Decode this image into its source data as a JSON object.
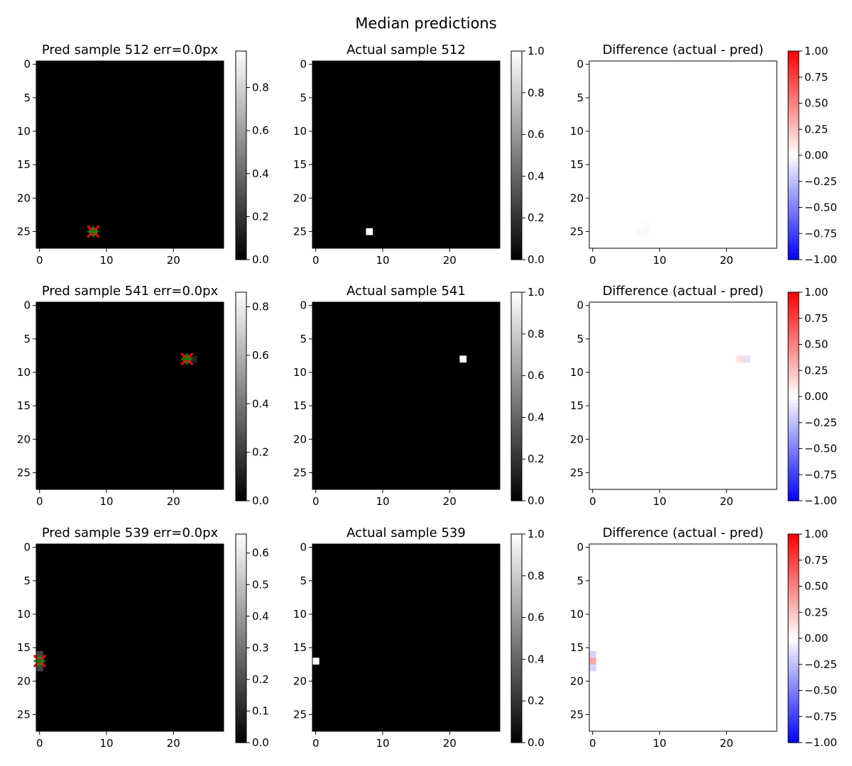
{
  "figure": {
    "suptitle": "Median predictions"
  },
  "chart_data": [
    {
      "type": "heatmap",
      "id": "pred-512",
      "title": "Pred sample 512  err=0.0px",
      "colormap": "gray",
      "shape": [
        28,
        28
      ],
      "xticks": [
        0,
        10,
        20
      ],
      "yticks": [
        0,
        5,
        10,
        15,
        20,
        25
      ],
      "colorbar": {
        "range": [
          0,
          0.97
        ],
        "ticks": [
          0.0,
          0.2,
          0.4,
          0.6,
          0.8
        ],
        "tick_labels": [
          "0.0",
          "0.2",
          "0.4",
          "0.6",
          "0.8"
        ]
      },
      "cells": [
        {
          "row": 25,
          "col": 7,
          "value": 0.02
        },
        {
          "row": 25,
          "col": 8,
          "value": 0.97
        }
      ],
      "markers": [
        {
          "kind": "x",
          "color": "#ff0000",
          "x": 8,
          "y": 25
        },
        {
          "kind": "+",
          "color": "#008000",
          "x": 8,
          "y": 25
        }
      ]
    },
    {
      "type": "heatmap",
      "id": "actual-512",
      "title": "Actual sample 512",
      "colormap": "gray",
      "shape": [
        28,
        28
      ],
      "xticks": [
        0,
        10,
        20
      ],
      "yticks": [
        0,
        5,
        10,
        15,
        20,
        25
      ],
      "colorbar": {
        "range": [
          0,
          1
        ],
        "ticks": [
          0.0,
          0.2,
          0.4,
          0.6,
          0.8,
          1.0
        ],
        "tick_labels": [
          "0.0",
          "0.2",
          "0.4",
          "0.6",
          "0.8",
          "1.0"
        ]
      },
      "cells": [
        {
          "row": 25,
          "col": 8,
          "value": 1.0
        }
      ]
    },
    {
      "type": "heatmap",
      "id": "diff-512",
      "title": "Difference (actual - pred)",
      "colormap": "bwr",
      "shape": [
        28,
        28
      ],
      "xticks": [
        0,
        10,
        20
      ],
      "yticks": [
        0,
        5,
        10,
        15,
        20,
        25
      ],
      "colorbar": {
        "range": [
          -1,
          1
        ],
        "ticks": [
          1.0,
          0.75,
          0.5,
          0.25,
          0.0,
          -0.25,
          -0.5,
          -0.75,
          -1.0
        ],
        "tick_labels": [
          "1.00",
          "0.75",
          "0.50",
          "0.25",
          "0.00",
          "−0.25",
          "−0.50",
          "−0.75",
          "−1.00"
        ]
      },
      "cells": [
        {
          "row": 24,
          "col": 8,
          "value": -0.02
        },
        {
          "row": 25,
          "col": 7,
          "value": -0.02
        },
        {
          "row": 25,
          "col": 8,
          "value": 0.03
        }
      ]
    },
    {
      "type": "heatmap",
      "id": "pred-541",
      "title": "Pred sample 541  err=0.0px",
      "colormap": "gray",
      "shape": [
        28,
        28
      ],
      "xticks": [
        0,
        10,
        20
      ],
      "yticks": [
        0,
        5,
        10,
        15,
        20,
        25
      ],
      "colorbar": {
        "range": [
          0,
          0.86
        ],
        "ticks": [
          0.0,
          0.2,
          0.4,
          0.6,
          0.8
        ],
        "tick_labels": [
          "0.0",
          "0.2",
          "0.4",
          "0.6",
          "0.8"
        ]
      },
      "cells": [
        {
          "row": 8,
          "col": 22,
          "value": 0.86
        },
        {
          "row": 8,
          "col": 23,
          "value": 0.12
        }
      ],
      "markers": [
        {
          "kind": "x",
          "color": "#ff0000",
          "x": 22,
          "y": 8
        },
        {
          "kind": "+",
          "color": "#008000",
          "x": 22,
          "y": 8
        }
      ]
    },
    {
      "type": "heatmap",
      "id": "actual-541",
      "title": "Actual sample 541",
      "colormap": "gray",
      "shape": [
        28,
        28
      ],
      "xticks": [
        0,
        10,
        20
      ],
      "yticks": [
        0,
        5,
        10,
        15,
        20,
        25
      ],
      "colorbar": {
        "range": [
          0,
          1
        ],
        "ticks": [
          0.0,
          0.2,
          0.4,
          0.6,
          0.8,
          1.0
        ],
        "tick_labels": [
          "0.0",
          "0.2",
          "0.4",
          "0.6",
          "0.8",
          "1.0"
        ]
      },
      "cells": [
        {
          "row": 8,
          "col": 22,
          "value": 1.0
        }
      ]
    },
    {
      "type": "heatmap",
      "id": "diff-541",
      "title": "Difference (actual - pred)",
      "colormap": "bwr",
      "shape": [
        28,
        28
      ],
      "xticks": [
        0,
        10,
        20
      ],
      "yticks": [
        0,
        5,
        10,
        15,
        20,
        25
      ],
      "colorbar": {
        "range": [
          -1,
          1
        ],
        "ticks": [
          1.0,
          0.75,
          0.5,
          0.25,
          0.0,
          -0.25,
          -0.5,
          -0.75,
          -1.0
        ],
        "tick_labels": [
          "1.00",
          "0.75",
          "0.50",
          "0.25",
          "0.00",
          "−0.25",
          "−0.50",
          "−0.75",
          "−1.00"
        ]
      },
      "cells": [
        {
          "row": 8,
          "col": 22,
          "value": 0.14
        },
        {
          "row": 8,
          "col": 23,
          "value": -0.12
        }
      ]
    },
    {
      "type": "heatmap",
      "id": "pred-539",
      "title": "Pred sample 539  err=0.0px",
      "colormap": "gray",
      "shape": [
        28,
        28
      ],
      "xticks": [
        0,
        10,
        20
      ],
      "yticks": [
        0,
        5,
        10,
        15,
        20,
        25
      ],
      "colorbar": {
        "range": [
          0,
          0.66
        ],
        "ticks": [
          0.0,
          0.1,
          0.2,
          0.3,
          0.4,
          0.5,
          0.6
        ],
        "tick_labels": [
          "0.0",
          "0.1",
          "0.2",
          "0.3",
          "0.4",
          "0.5",
          "0.6"
        ]
      },
      "cells": [
        {
          "row": 16,
          "col": 0,
          "value": 0.17
        },
        {
          "row": 17,
          "col": 0,
          "value": 0.66
        },
        {
          "row": 18,
          "col": 0,
          "value": 0.17
        }
      ],
      "markers": [
        {
          "kind": "x",
          "color": "#ff0000",
          "x": 0,
          "y": 17
        },
        {
          "kind": "+",
          "color": "#008000",
          "x": 0,
          "y": 17
        }
      ]
    },
    {
      "type": "heatmap",
      "id": "actual-539",
      "title": "Actual sample 539",
      "colormap": "gray",
      "shape": [
        28,
        28
      ],
      "xticks": [
        0,
        10,
        20
      ],
      "yticks": [
        0,
        5,
        10,
        15,
        20,
        25
      ],
      "colorbar": {
        "range": [
          0,
          1
        ],
        "ticks": [
          0.0,
          0.2,
          0.4,
          0.6,
          0.8,
          1.0
        ],
        "tick_labels": [
          "0.0",
          "0.2",
          "0.4",
          "0.6",
          "0.8",
          "1.0"
        ]
      },
      "cells": [
        {
          "row": 17,
          "col": 0,
          "value": 1.0
        }
      ]
    },
    {
      "type": "heatmap",
      "id": "diff-539",
      "title": "Difference (actual - pred)",
      "colormap": "bwr",
      "shape": [
        28,
        28
      ],
      "xticks": [
        0,
        10,
        20
      ],
      "yticks": [
        0,
        5,
        10,
        15,
        20,
        25
      ],
      "colorbar": {
        "range": [
          -1,
          1
        ],
        "ticks": [
          1.0,
          0.75,
          0.5,
          0.25,
          0.0,
          -0.25,
          -0.5,
          -0.75,
          -1.0
        ],
        "tick_labels": [
          "1.00",
          "0.75",
          "0.50",
          "0.25",
          "0.00",
          "−0.25",
          "−0.50",
          "−0.75",
          "−1.00"
        ]
      },
      "cells": [
        {
          "row": 16,
          "col": 0,
          "value": -0.17
        },
        {
          "row": 17,
          "col": 0,
          "value": 0.34
        },
        {
          "row": 18,
          "col": 0,
          "value": -0.17
        }
      ]
    }
  ]
}
